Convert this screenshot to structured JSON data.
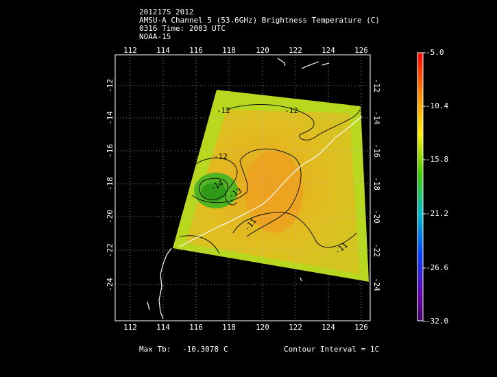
{
  "header": {
    "line1": "201217S 2012",
    "line2": "AMSU-A Channel 5 (53.6GHz) Brightness Temperature (C)",
    "line3": "0316 Time: 2003 UTC",
    "line4": "NOAA-15"
  },
  "map": {
    "lon_ticks": [
      "112",
      "114",
      "116",
      "118",
      "120",
      "122",
      "124",
      "126"
    ],
    "lat_ticks": [
      "-12",
      "-14",
      "-16",
      "-18",
      "-20",
      "-22",
      "-24"
    ],
    "contour_labels": [
      "-12",
      "-12",
      "-12",
      "-14",
      "-13",
      "-11",
      "-11"
    ]
  },
  "colorbar": {
    "labels": [
      "-5.0",
      "-10.4",
      "-15.8",
      "-21.2",
      "-26.6",
      "-32.0"
    ]
  },
  "footer": {
    "max_label": "Max Tb:",
    "max_value": "-10.3078",
    "max_unit": "C",
    "contour": "Contour Interval = 1C"
  }
}
